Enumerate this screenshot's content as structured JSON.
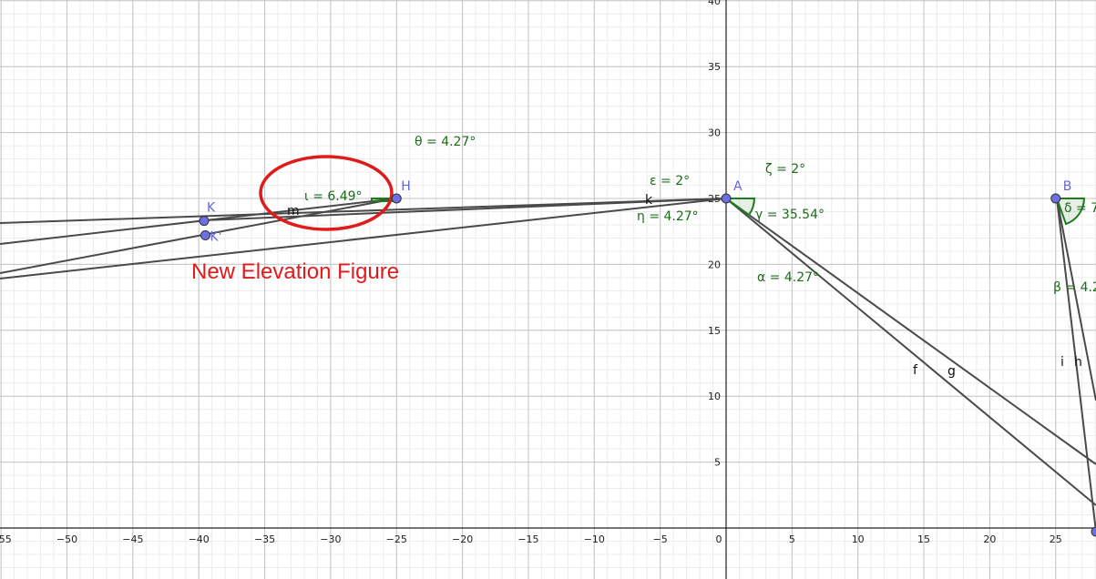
{
  "axes": {
    "xticks": [
      {
        "value": -55,
        "label": "−55"
      },
      {
        "value": -50,
        "label": "−50"
      },
      {
        "value": -45,
        "label": "−45"
      },
      {
        "value": -40,
        "label": "−40"
      },
      {
        "value": -35,
        "label": "−35"
      },
      {
        "value": -30,
        "label": "−30"
      },
      {
        "value": -25,
        "label": "−25"
      },
      {
        "value": -20,
        "label": "−20"
      },
      {
        "value": -15,
        "label": "−15"
      },
      {
        "value": -10,
        "label": "−10"
      },
      {
        "value": -5,
        "label": "−5"
      },
      0,
      5,
      10,
      15,
      20,
      25
    ],
    "yticks": [
      5,
      10,
      15,
      20,
      25,
      30,
      35,
      40
    ]
  },
  "points": [
    {
      "label": "A",
      "x": 0,
      "y": 25
    },
    {
      "label": "B",
      "x": 25,
      "y": 25
    },
    {
      "label": "H",
      "x": -25,
      "y": 25
    },
    {
      "label": "K",
      "x": -39.6,
      "y": 23.3
    },
    {
      "label": "K'",
      "x": -39.5,
      "y": 22.2
    }
  ],
  "labels": [
    "θ = 4.27°",
    "ε = 2°",
    "ζ = 2°",
    "η = 4.27°",
    "γ = 35.54°",
    "α = 4.27°",
    "δ = 7",
    "β = 4.2",
    "ι = 6.49°"
  ],
  "objects": [
    "k",
    "m",
    "f",
    "g",
    "i",
    "h"
  ],
  "annotation": "New Elevation Figure"
}
